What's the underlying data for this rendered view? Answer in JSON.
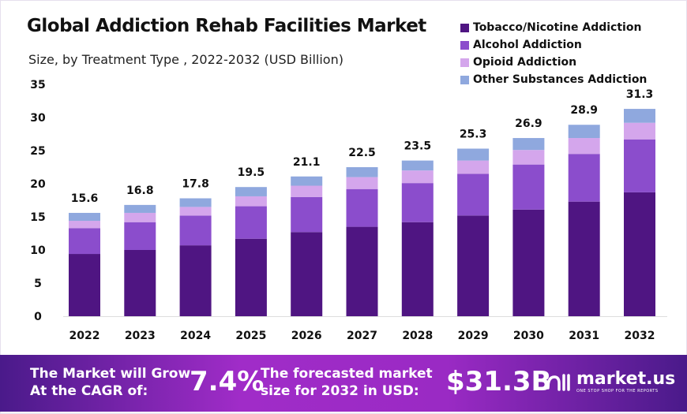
{
  "chart_data": {
    "type": "bar",
    "stacked": true,
    "title": "Global Addiction Rehab Facilities Market",
    "subtitle": "Size, by Treatment Type , 2022-2032 (USD Billion)",
    "categories": [
      "2022",
      "2023",
      "2024",
      "2025",
      "2026",
      "2027",
      "2028",
      "2029",
      "2030",
      "2031",
      "2032"
    ],
    "series": [
      {
        "name": "Tobacco/Nicotine Addiction",
        "color": "#4f1582",
        "values": [
          9.4,
          10.0,
          10.7,
          11.7,
          12.7,
          13.5,
          14.2,
          15.2,
          16.1,
          17.3,
          18.7
        ]
      },
      {
        "name": "Alcohol Addiction",
        "color": "#8b4dcc",
        "values": [
          3.9,
          4.2,
          4.5,
          4.9,
          5.3,
          5.7,
          5.9,
          6.3,
          6.8,
          7.2,
          8.0
        ]
      },
      {
        "name": "Opioid Addiction",
        "color": "#d4a6ec",
        "values": [
          1.1,
          1.4,
          1.3,
          1.5,
          1.7,
          1.8,
          1.9,
          2.0,
          2.2,
          2.4,
          2.5
        ]
      },
      {
        "name": "Other Substances Addiction",
        "color": "#8fa8de",
        "values": [
          1.2,
          1.2,
          1.3,
          1.4,
          1.4,
          1.5,
          1.5,
          1.8,
          1.8,
          2.0,
          2.1
        ]
      }
    ],
    "totals": [
      "15.6",
      "16.8",
      "17.8",
      "19.5",
      "21.1",
      "22.5",
      "23.5",
      "25.3",
      "26.9",
      "28.9",
      "31.3"
    ],
    "yticks": [
      "0",
      "5",
      "10",
      "15",
      "20",
      "25",
      "30",
      "35"
    ],
    "ylim": [
      0,
      35
    ],
    "grid": false,
    "legend_position": "top-right"
  },
  "footer": {
    "cagr_text_1": "The Market will Grow",
    "cagr_text_2": "At the CAGR of:",
    "cagr_value": "7.4%",
    "forecast_text_1": "The forecasted market",
    "forecast_text_2": "size for 2032 in USD:",
    "forecast_value": "$31.3B",
    "logo_name": "market.us",
    "logo_tagline": "ONE STOP SHOP FOR THE REPORTS"
  }
}
